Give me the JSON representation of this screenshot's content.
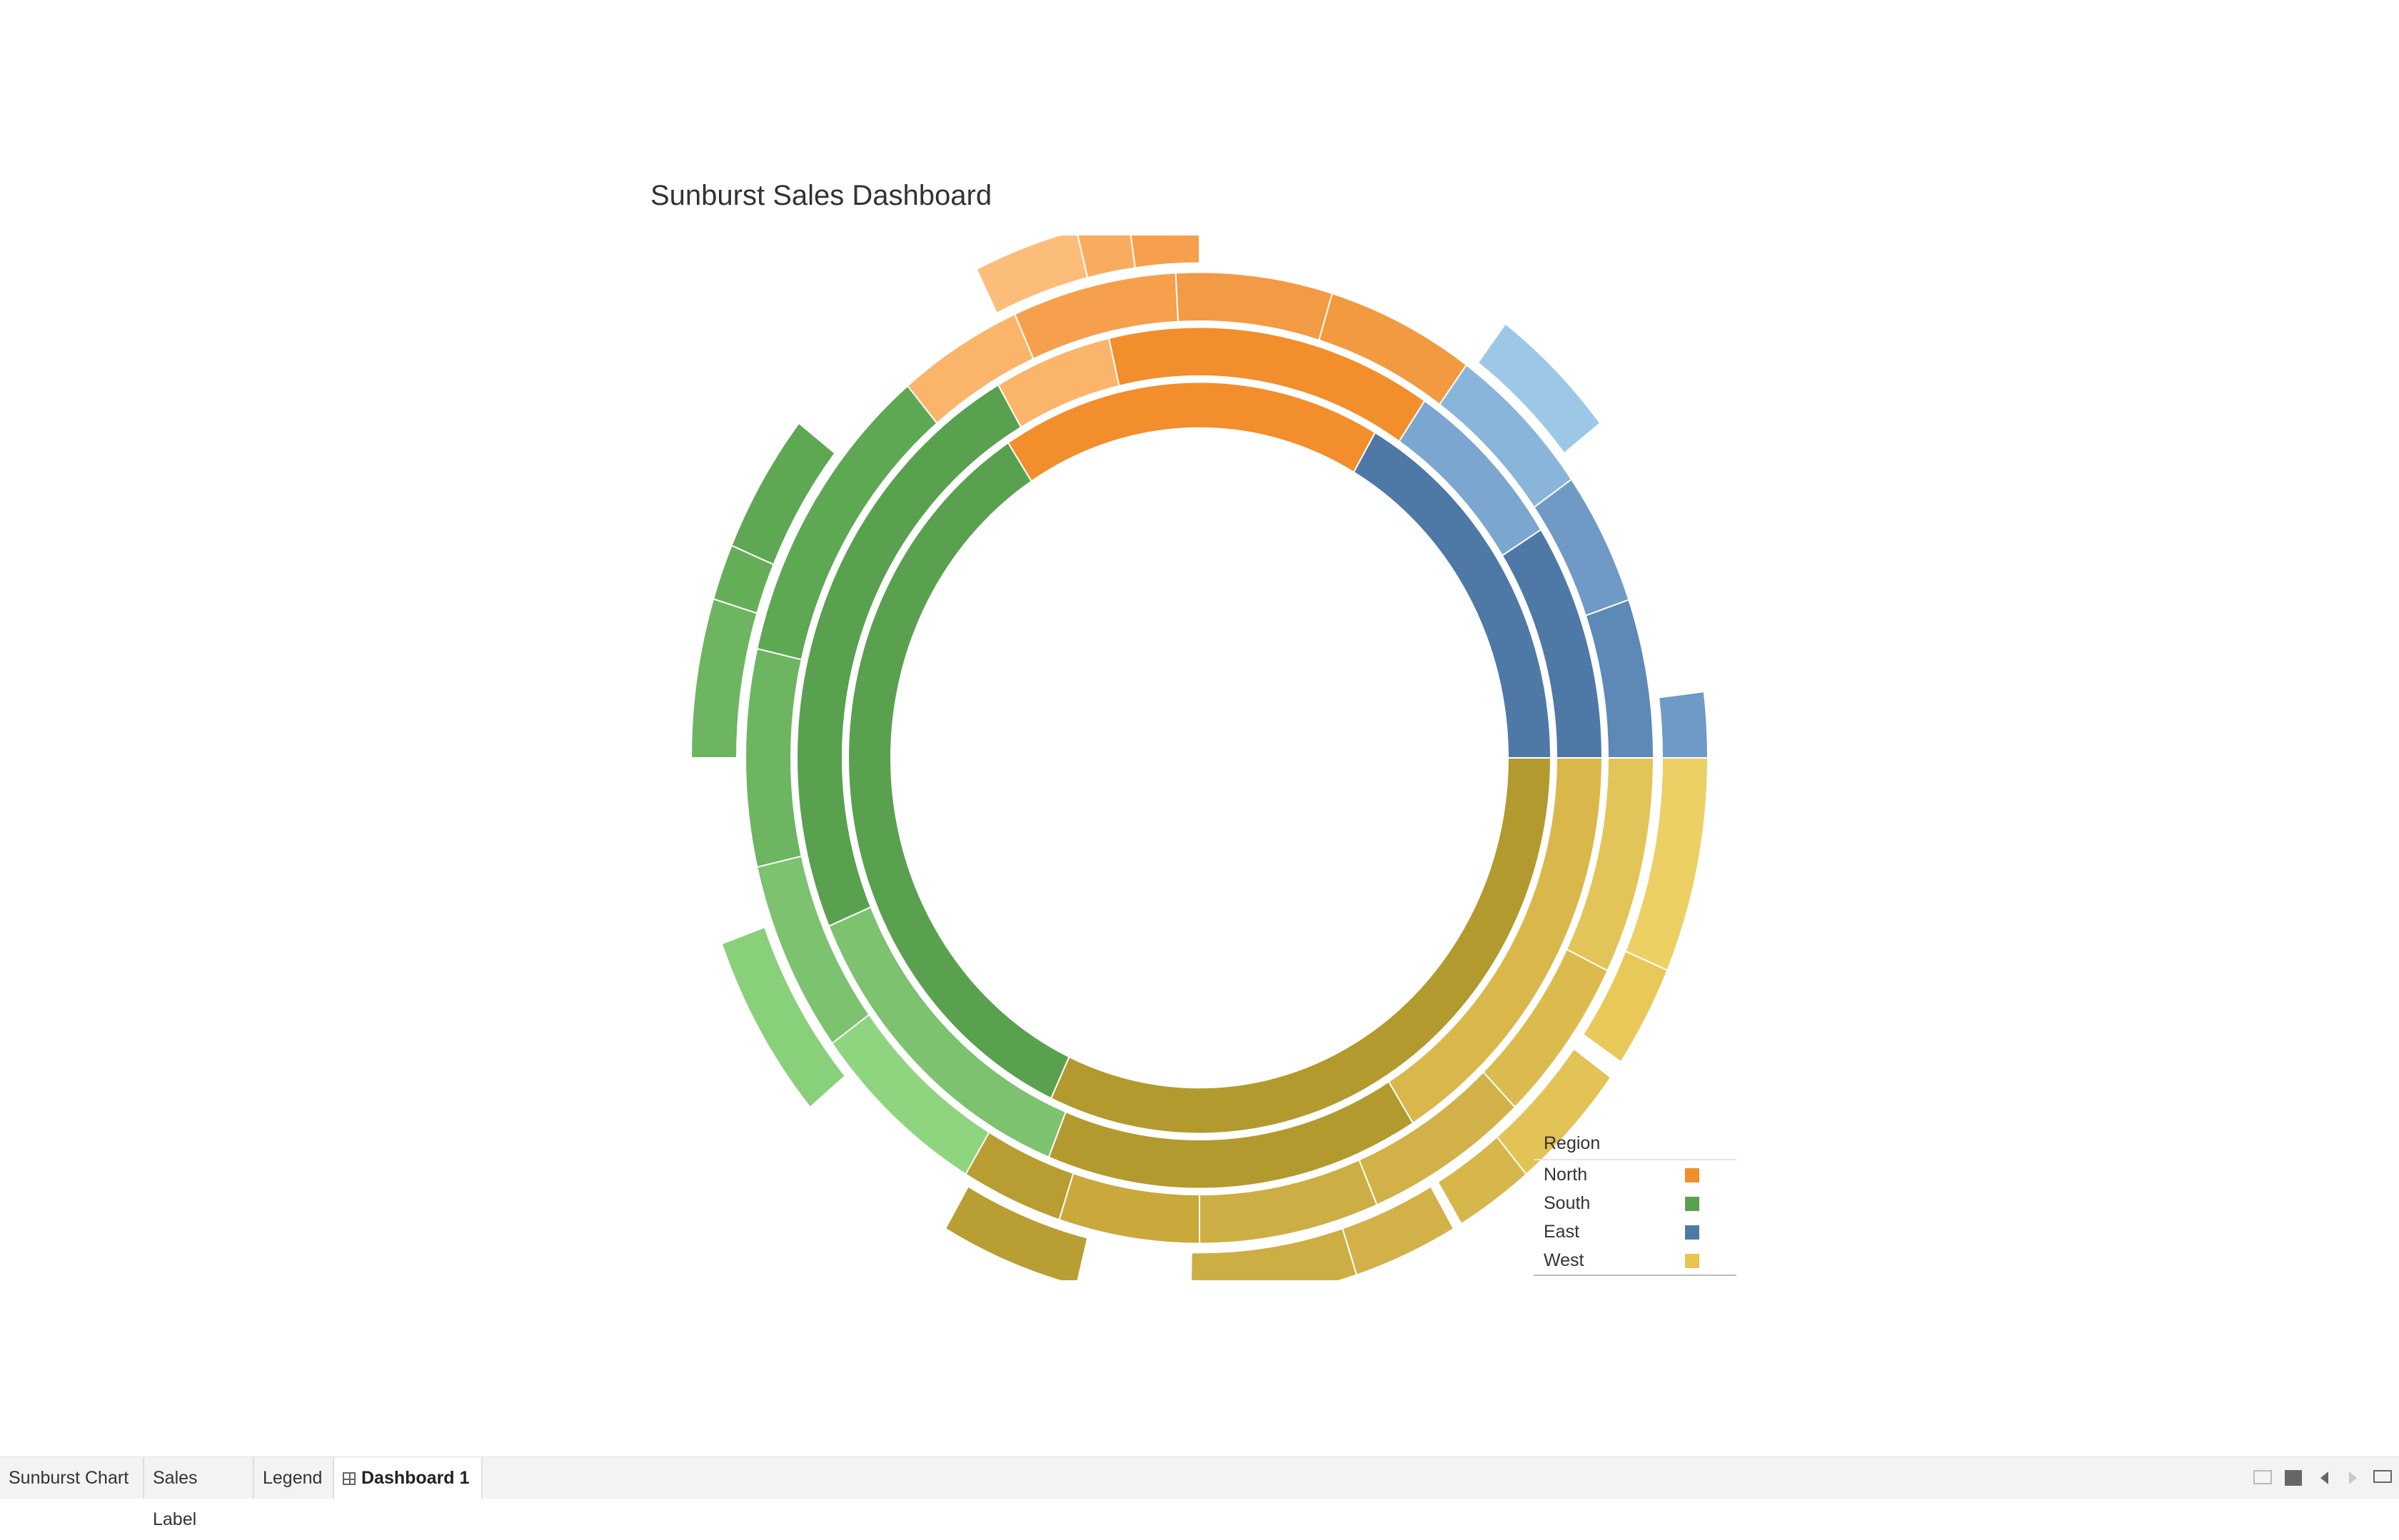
{
  "dashboard": {
    "title": "Sunburst Sales Dashboard"
  },
  "legend": {
    "title": "Region",
    "items": [
      {
        "label": "North",
        "color": "#f28e2b"
      },
      {
        "label": "South",
        "color": "#59a14f"
      },
      {
        "label": "East",
        "color": "#4e79a7"
      },
      {
        "label": "West",
        "color": "#e8c54e"
      }
    ]
  },
  "tabs": [
    {
      "label": "Sunburst Chart",
      "active": false
    },
    {
      "label": "Sales Label",
      "active": false
    },
    {
      "label": "Legend",
      "active": false
    },
    {
      "label": "Dashboard 1",
      "active": true,
      "icon": "grid-icon"
    }
  ],
  "toolbar_icons": [
    "thumbnails-icon",
    "single-sheet-icon",
    "previous-sheet-icon",
    "next-sheet-icon",
    "presentation-mode-icon"
  ],
  "chart_data": {
    "type": "sunburst",
    "title": "Sunburst Sales Dashboard",
    "legend_title": "Region",
    "legend_position": "bottom-right",
    "rings": [
      {
        "level": 1,
        "segments": [
          {
            "region": "West",
            "start": 0,
            "end": 115,
            "color": "#b39a2e"
          },
          {
            "region": "South",
            "start": 115,
            "end": 237,
            "color": "#59a14f"
          },
          {
            "region": "North",
            "start": 237,
            "end": 300,
            "color": "#f28e2b"
          },
          {
            "region": "East",
            "start": 300,
            "end": 360,
            "color": "#4e79a7"
          }
        ]
      },
      {
        "level": 2,
        "segments": [
          {
            "region": "West",
            "start": 0,
            "end": 58,
            "color": "#d9b74a"
          },
          {
            "region": "West",
            "start": 58,
            "end": 112,
            "color": "#b39a2e"
          },
          {
            "region": "South",
            "start": 112,
            "end": 157,
            "color": "#7cc26f"
          },
          {
            "region": "South",
            "start": 157,
            "end": 240,
            "color": "#59a14f"
          },
          {
            "region": "North",
            "start": 240,
            "end": 257,
            "color": "#fbb56b"
          },
          {
            "region": "North",
            "start": 257,
            "end": 304,
            "color": "#f28e2b"
          },
          {
            "region": "East",
            "start": 304,
            "end": 328,
            "color": "#7ba6cf"
          },
          {
            "region": "East",
            "start": 328,
            "end": 360,
            "color": "#4e79a7"
          }
        ]
      },
      {
        "level": 3,
        "segments": [
          {
            "region": "West",
            "start": 0,
            "end": 26,
            "color": "#e3c458"
          },
          {
            "region": "West",
            "start": 26,
            "end": 46,
            "color": "#dcbb4e"
          },
          {
            "region": "West",
            "start": 46,
            "end": 67,
            "color": "#d2b148"
          },
          {
            "region": "West",
            "start": 67,
            "end": 90,
            "color": "#cdae44"
          },
          {
            "region": "West",
            "start": 90,
            "end": 108,
            "color": "#c9a83c"
          },
          {
            "region": "West",
            "start": 108,
            "end": 121,
            "color": "#b89d32"
          },
          {
            "region": "South",
            "start": 121,
            "end": 144,
            "color": "#8fd47f"
          },
          {
            "region": "South",
            "start": 144,
            "end": 167,
            "color": "#7cc26f"
          },
          {
            "region": "South",
            "start": 167,
            "end": 193,
            "color": "#6db560"
          },
          {
            "region": "South",
            "start": 193,
            "end": 230,
            "color": "#5ea853"
          },
          {
            "region": "North",
            "start": 230,
            "end": 246,
            "color": "#fbb56b"
          },
          {
            "region": "North",
            "start": 246,
            "end": 267,
            "color": "#f6a04e"
          },
          {
            "region": "North",
            "start": 267,
            "end": 287,
            "color": "#f39a44"
          },
          {
            "region": "North",
            "start": 287,
            "end": 306,
            "color": "#f29a3f"
          },
          {
            "region": "East",
            "start": 306,
            "end": 325,
            "color": "#8ab5da"
          },
          {
            "region": "East",
            "start": 325,
            "end": 341,
            "color": "#6e9ac5"
          },
          {
            "region": "East",
            "start": 341,
            "end": 360,
            "color": "#5d89b6"
          }
        ]
      },
      {
        "level": 4,
        "segments": [
          {
            "region": "West",
            "start": 0,
            "end": 23,
            "color": "#ecd064"
          },
          {
            "region": "West",
            "start": 23,
            "end": 34,
            "color": "#e9c85a"
          },
          {
            "region": "West",
            "start": 36,
            "end": 50,
            "color": "#e3c256"
          },
          {
            "region": "West",
            "start": 50,
            "end": 59,
            "color": "#d7b64b"
          },
          {
            "region": "West",
            "start": 60,
            "end": 72,
            "color": "#d2b148"
          },
          {
            "region": "West",
            "start": 72,
            "end": 91,
            "color": "#cdae44"
          },
          {
            "region": "West",
            "start": 104,
            "end": 120,
            "color": "#b99e33"
          },
          {
            "region": "South",
            "start": 140,
            "end": 160,
            "color": "#88d07a"
          },
          {
            "region": "South",
            "start": 180,
            "end": 197,
            "color": "#6db560"
          },
          {
            "region": "South",
            "start": 197,
            "end": 203,
            "color": "#65ae58"
          },
          {
            "region": "South",
            "start": 203,
            "end": 218,
            "color": "#5ea853"
          },
          {
            "region": "North",
            "start": 244,
            "end": 256,
            "color": "#fdbd7a"
          },
          {
            "region": "North",
            "start": 256,
            "end": 262,
            "color": "#f9ac60"
          },
          {
            "region": "North",
            "start": 262,
            "end": 270,
            "color": "#f6a04e"
          },
          {
            "region": "East",
            "start": 307,
            "end": 322,
            "color": "#9dc7e6"
          },
          {
            "region": "East",
            "start": 353,
            "end": 360,
            "color": "#6e9ac5"
          }
        ]
      }
    ]
  }
}
